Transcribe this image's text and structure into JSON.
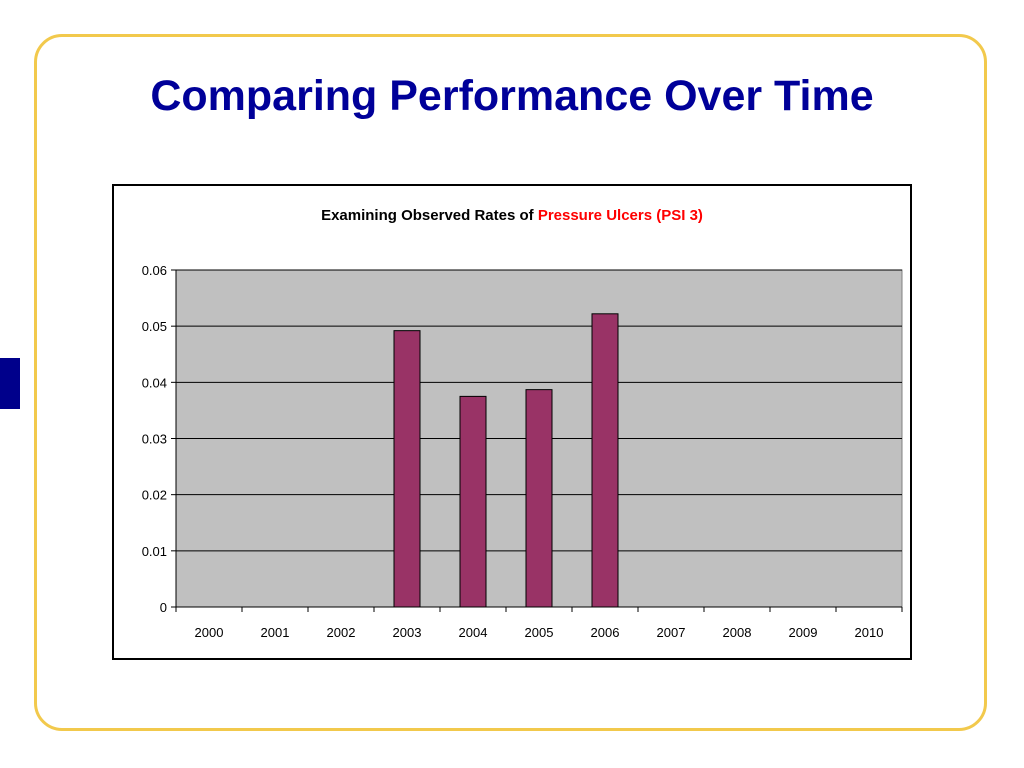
{
  "slide": {
    "title": "Comparing Performance Over Time",
    "title_color": "#000099",
    "frame_color": "#f2c94c",
    "side_tab_color": "#00008b"
  },
  "chart_data": {
    "type": "bar",
    "title_parts": [
      {
        "text": "Examining Observed Rates of ",
        "color": "#000000"
      },
      {
        "text": "Pressure Ulcers (PSI 3)",
        "color": "#ff0000"
      }
    ],
    "categories": [
      "2000",
      "2001",
      "2002",
      "2003",
      "2004",
      "2005",
      "2006",
      "2007",
      "2008",
      "2009",
      "2010"
    ],
    "values": [
      null,
      null,
      null,
      0.0492,
      0.0375,
      0.0387,
      0.0522,
      null,
      null,
      null,
      null
    ],
    "ylim": [
      0,
      0.06
    ],
    "yticks": [
      "0",
      "0.01",
      "0.02",
      "0.03",
      "0.04",
      "0.05",
      "0.06"
    ],
    "ytick_values": [
      0,
      0.01,
      0.02,
      0.03,
      0.04,
      0.05,
      0.06
    ],
    "grid": true,
    "legend": "none",
    "bar_color": "#993366",
    "plot_bg": "#c0c0c0"
  }
}
